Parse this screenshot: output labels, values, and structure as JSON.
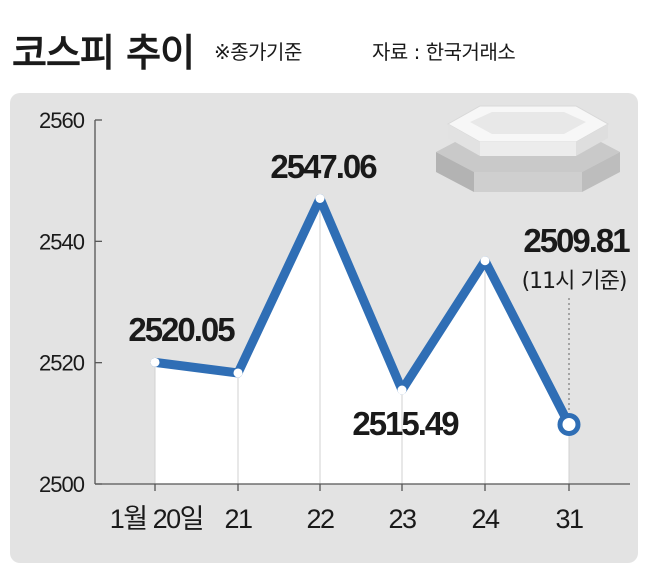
{
  "header": {
    "title": "코스피 추이",
    "subtitle": "※종가기준",
    "source": "자료 : 한국거래소"
  },
  "chart_data": {
    "type": "line",
    "title": "코스피 추이",
    "categories": [
      "1월 20일",
      "21",
      "22",
      "23",
      "24",
      "31"
    ],
    "values": [
      2520.05,
      2518.3,
      2547.06,
      2515.49,
      2536.8,
      2509.81
    ],
    "ylim": [
      2500,
      2560
    ],
    "yticks": [
      2500,
      2520,
      2540,
      2560
    ],
    "ytick_labels": [
      "2500",
      "2520",
      "2540",
      "2560"
    ],
    "data_labels": [
      {
        "index": 0,
        "text": "2520.05"
      },
      {
        "index": 2,
        "text": "2547.06"
      },
      {
        "index": 3,
        "text": "2515.49"
      },
      {
        "index": 5,
        "text": "2509.81"
      }
    ],
    "last_note": "(11시 기준)",
    "grid": false,
    "line_color": "#2f6eb5",
    "fill_color": "#ffffff"
  }
}
